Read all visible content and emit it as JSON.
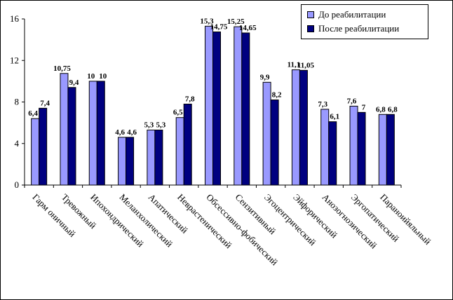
{
  "chart_data": {
    "type": "bar",
    "categories": [
      "Гармоничный",
      "Тревожный",
      "Ипохондрический",
      "Меланхолический",
      "Апатический",
      "Неврастенический",
      "Обсессивно-фобический",
      "Сензитивный",
      "Эгоцентрический",
      "Эйфорический",
      "Анозогнозический",
      "Эргопатический",
      "Паранойяльный"
    ],
    "category_display": [
      "Гарм оничный",
      "Тревожный",
      "Ипохондрический",
      "Меланхолический",
      "Апатический",
      "Неврастенический",
      "Обсессивно-фобический",
      "Сензитивный",
      "Эгоцентрический",
      "Эйфорический",
      "Анозогнозический",
      "Эргопатический",
      "Параноийяльный"
    ],
    "series": [
      {
        "name": "До реабилитации",
        "color": "#9999ff",
        "values": [
          6.4,
          10.75,
          10,
          4.6,
          5.3,
          6.5,
          15.3,
          15.25,
          9.9,
          11.1,
          7.3,
          7.6,
          6.8
        ],
        "labels": [
          "6,4",
          "10,75",
          "10",
          "4,6",
          "5,3",
          "6,5",
          "15,3",
          "15,25",
          "9,9",
          "11,1",
          "7,3",
          "7,6",
          "6,8"
        ]
      },
      {
        "name": "После реабилитации",
        "color": "#000080",
        "values": [
          7.4,
          9.4,
          10,
          4.6,
          5.3,
          7.8,
          14.75,
          14.65,
          8.2,
          11.05,
          6.1,
          7,
          6.8
        ],
        "labels": [
          "7,4",
          "9,4",
          "10",
          "4,6",
          "5,3",
          "7,8",
          "14,75",
          "14,65",
          "8,2",
          "11,05",
          "6,1",
          "7",
          "6,8"
        ]
      }
    ],
    "yticks": [
      "0",
      "4",
      "8",
      "12",
      "16"
    ],
    "ylim": [
      0,
      16
    ],
    "grid": false,
    "legend_position": "top-right"
  }
}
